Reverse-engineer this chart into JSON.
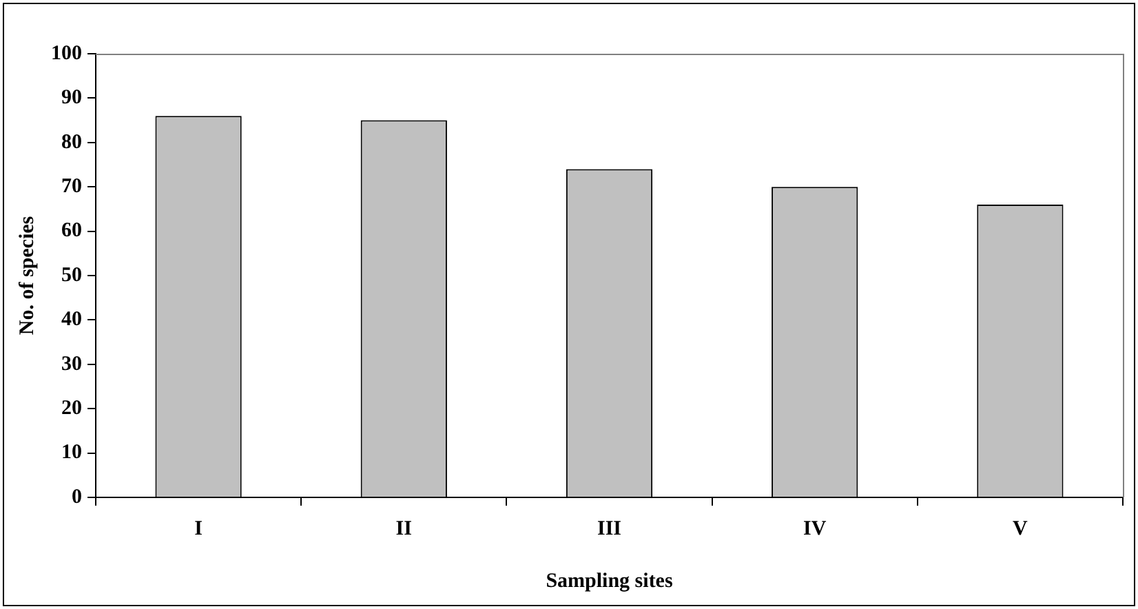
{
  "chart_data": {
    "type": "bar",
    "xlabel": "Sampling sites",
    "ylabel": "No. of species",
    "categories": [
      "I",
      "II",
      "III",
      "IV",
      "V"
    ],
    "values": [
      86,
      85,
      74,
      70,
      66
    ],
    "color": "#c0c0c0",
    "ylim": [
      0,
      100
    ],
    "yticks": [
      0,
      10,
      20,
      30,
      40,
      50,
      60,
      70,
      80,
      90,
      100
    ],
    "grid": false,
    "legend": false
  }
}
